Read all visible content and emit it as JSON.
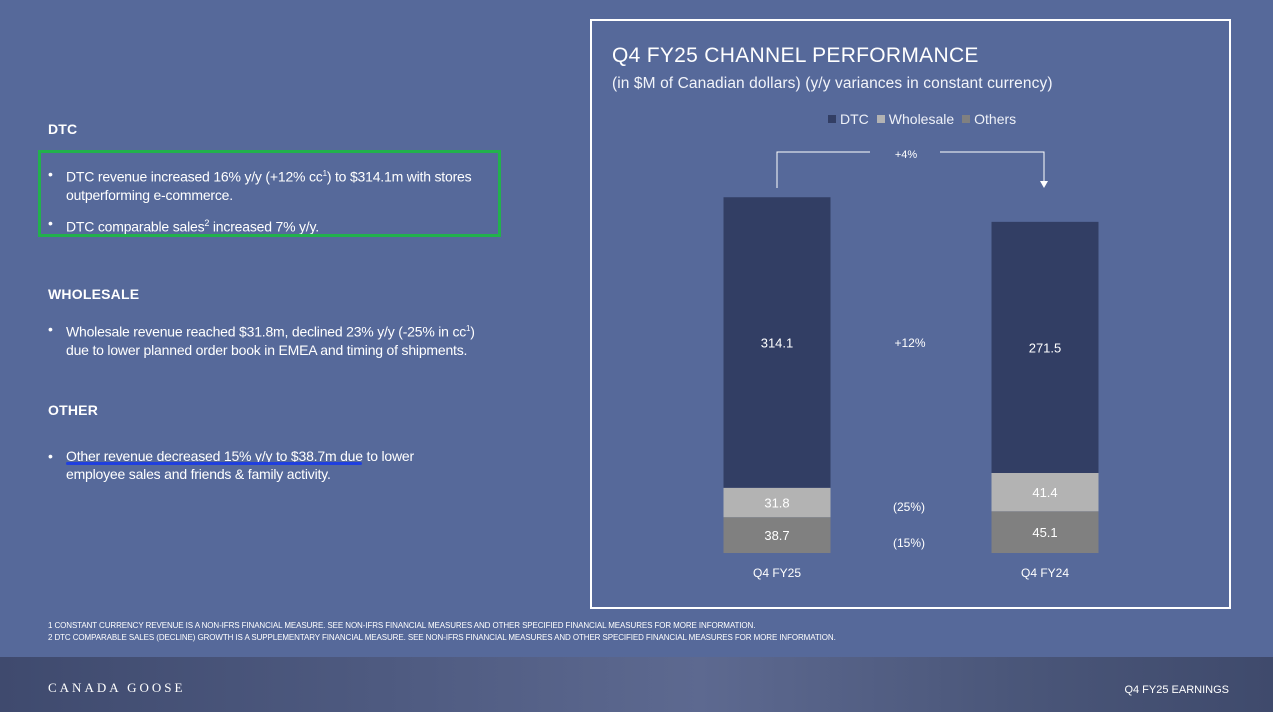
{
  "left_panel": {
    "dtc": {
      "heading": "DTC",
      "bullet1_text": "DTC revenue increased 16% y/y (+12% cc",
      "bullet1_sup": "1",
      "bullet1_text_after": ") to $314.1m with stores outperforming e-commerce.",
      "bullet2_text": "DTC comparable sales",
      "bullet2_sup": "2",
      "bullet2_text_after": " increased 7% y/y."
    },
    "wholesale": {
      "heading": "WHOLESALE",
      "bullet1_text": "Wholesale revenue reached $31.8m, declined 23% y/y (-25% in cc",
      "bullet1_sup": "1",
      "bullet1_text_after": ") due to lower planned order book in EMEA and timing of shipments."
    },
    "other": {
      "heading": "OTHER",
      "bullet1_text": "Other revenue decreased 15% y/y to $38.7m due to lower employee sales and friends & family activity."
    },
    "bullet_symbol": "•"
  },
  "chart_data": {
    "type": "bar",
    "stacked": true,
    "title": "Q4 FY25 CHANNEL PERFORMANCE",
    "subtitle": "(in $M of Canadian dollars) (y/y variances in constant currency)",
    "categories": [
      "Q4 FY25",
      "Q4 FY24"
    ],
    "series": [
      {
        "name": "Others",
        "values": [
          38.7,
          45.1
        ],
        "color": "#808080"
      },
      {
        "name": "Wholesale",
        "values": [
          31.8,
          41.4
        ],
        "color": "#b3b3b3"
      },
      {
        "name": "DTC",
        "values": [
          314.1,
          271.5
        ],
        "color": "#323e64"
      }
    ],
    "legend_order": [
      "DTC",
      "Wholesale",
      "Others"
    ],
    "legend_placement": "top",
    "variance_labels": {
      "total": "+4%",
      "dtc": "+12%",
      "wholesale": "(25%)",
      "others": "(15%)"
    },
    "grid": false
  },
  "footnotes": [
    "1 CONSTANT CURRENCY REVENUE IS A NON-IFRS FINANCIAL MEASURE. SEE NON-IFRS FINANCIAL MEASURES AND OTHER SPECIFIED FINANCIAL MEASURES FOR MORE INFORMATION.",
    "2 DTC COMPARABLE SALES (DECLINE) GROWTH IS A SUPPLEMENTARY FINANCIAL MEASURE. SEE NON-IFRS FINANCIAL MEASURES AND OTHER SPECIFIED FINANCIAL MEASURES FOR MORE INFORMATION."
  ],
  "footer": {
    "brand": "CANADA GOOSE",
    "right_label": "Q4 FY25 EARNINGS"
  },
  "colors": {
    "background": "#56699a",
    "highlight_box": "#22b14c",
    "underline": "#1f3fe0"
  }
}
